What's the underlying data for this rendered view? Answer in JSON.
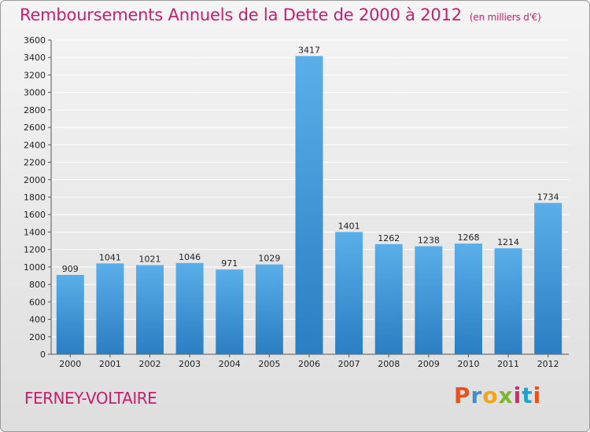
{
  "header": {
    "title": "Remboursements Annuels de la Dette de 2000 à 2012",
    "subtitle": "(en milliers d'€)"
  },
  "footer": {
    "commune": "FERNEY-VOLTAIRE",
    "logo": "Proxiti",
    "logo_colors": [
      "#e6531d",
      "#3a8fd6",
      "#f2a417",
      "#7cb82f",
      "#d32c6b",
      "#1fa3c9",
      "#e6531d"
    ]
  },
  "colors": {
    "bar_top": "#5aaee9",
    "bar_bottom": "#2a7ec2",
    "title": "#c81e6e"
  },
  "chart_data": {
    "type": "bar",
    "title": "Remboursements Annuels de la Dette de 2000 à 2012",
    "xlabel": "",
    "ylabel": "",
    "categories": [
      "2000",
      "2001",
      "2002",
      "2003",
      "2004",
      "2005",
      "2006",
      "2007",
      "2008",
      "2009",
      "2010",
      "2011",
      "2012"
    ],
    "values": [
      909,
      1041,
      1021,
      1046,
      971,
      1029,
      3417,
      1401,
      1262,
      1238,
      1268,
      1214,
      1734
    ],
    "ylim": [
      0,
      3600
    ],
    "yticks": [
      0,
      200,
      400,
      600,
      800,
      1000,
      1200,
      1400,
      1600,
      1800,
      2000,
      2200,
      2400,
      2600,
      2800,
      3000,
      3200,
      3400,
      3600
    ],
    "grid": true,
    "legend": "none"
  }
}
